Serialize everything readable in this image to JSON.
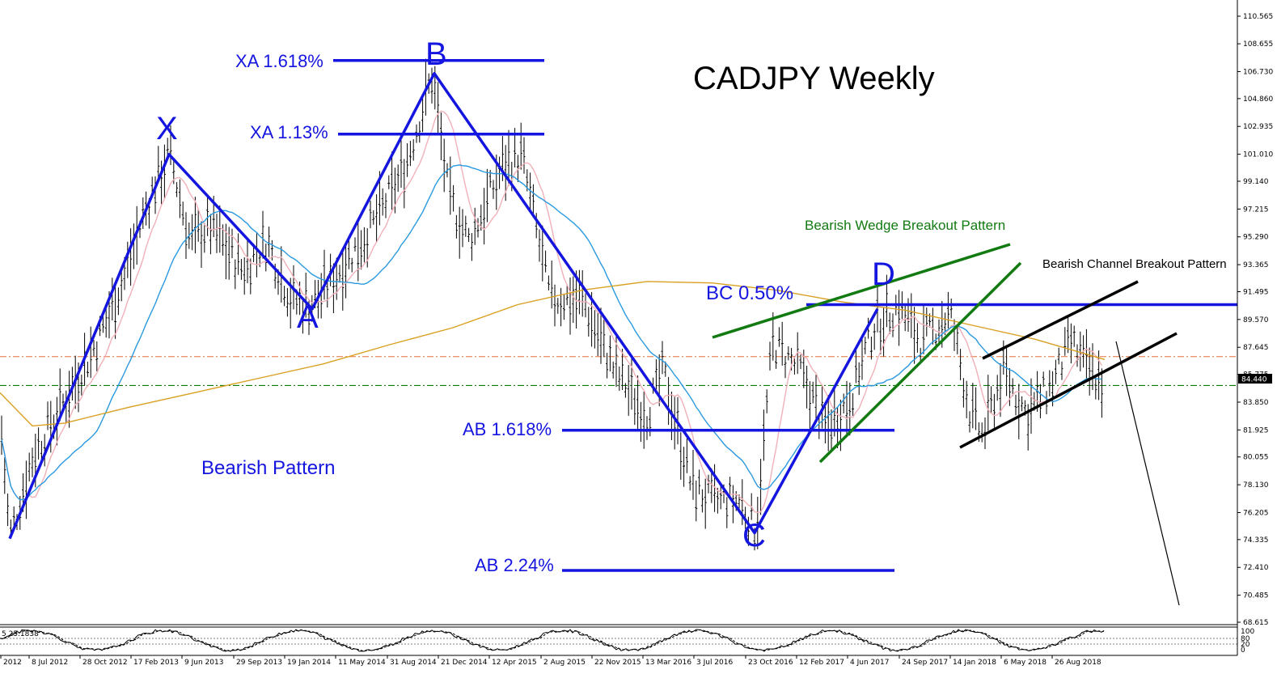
{
  "chart_data": {
    "type": "candlestick",
    "title": "CADJPY Weekly",
    "ylim": [
      68.615,
      112.5
    ],
    "y_ticks": [
      "110.565",
      "108.655",
      "106.730",
      "104.860",
      "102.935",
      "101.010",
      "99.140",
      "97.215",
      "95.290",
      "93.365",
      "91.495",
      "89.570",
      "87.645",
      "85.775",
      "83.850",
      "81.925",
      "80.055",
      "78.130",
      "76.205",
      "74.335",
      "72.410",
      "70.485",
      "68.615"
    ],
    "x_ticks": [
      "2012",
      "8 Jul 2012",
      "28 Oct 2012",
      "17 Feb 2013",
      "9 Jun 2013",
      "29 Sep 2013",
      "19 Jan 2014",
      "11 May 2014",
      "31 Aug 2014",
      "21 Dec 2014",
      "12 Apr 2015",
      "2 Aug 2015",
      "22 Nov 2015",
      "13 Mar 2016",
      "3 Jul 2016",
      "23 Oct 2016",
      "12 Feb 2017",
      "4 Jun 2017",
      "24 Sep 2017",
      "14 Jan 2018",
      "6 May 2018",
      "26 Aug 2018"
    ],
    "current_price": "84.440",
    "pattern_points": [
      {
        "name": "",
        "date": "2012-05",
        "price": 74.4
      },
      {
        "name": "X",
        "date": "2013-04",
        "price": 101.0
      },
      {
        "name": "A",
        "date": "2014-01",
        "price": 90.3
      },
      {
        "name": "B",
        "date": "2014-12",
        "price": 106.6
      },
      {
        "name": "C",
        "date": "2016-10",
        "price": 74.8
      },
      {
        "name": "D",
        "date": "2017-06",
        "price": 90.3
      }
    ],
    "levels": [
      {
        "label": "XA 1.618%",
        "price": 107.5
      },
      {
        "label": "XA 1.13%",
        "price": 102.4
      },
      {
        "label": "BC 0.50%",
        "price": 90.6
      },
      {
        "label": "AB 1.618%",
        "price": 81.9
      },
      {
        "label": "AB 2.24%",
        "price": 72.2
      }
    ],
    "horizontal_refs": [
      87.0,
      85.0
    ],
    "annotations": [
      "Bearish Pattern",
      "Bearish Wedge Breakout Pattern",
      "Bearish Channel Breakout Pattern"
    ],
    "oscillator": {
      "levels": [
        "100",
        "80",
        "20",
        "0"
      ],
      "readout": "5 25.1838"
    }
  },
  "colors": {
    "pattern": "#1515e0",
    "wedge": "#117a11",
    "channel": "#000000",
    "ma_slow": "#d9a020",
    "ma_mid": "#2a9ae0",
    "ma_fast": "#f2b0b8",
    "ref_red": "#e0703a",
    "ref_green": "#0a7a0a"
  }
}
